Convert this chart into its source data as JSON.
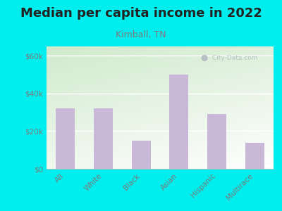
{
  "title": "Median per capita income in 2022",
  "subtitle": "Kimball, TN",
  "categories": [
    "All",
    "White",
    "Black",
    "Asian",
    "Hispanic",
    "Multirace"
  ],
  "values": [
    32000,
    32000,
    15000,
    50000,
    29000,
    14000
  ],
  "bar_color": "#C9B8D8",
  "background_outer": "#00EEEE",
  "title_fontsize": 13,
  "subtitle_fontsize": 9,
  "tick_label_fontsize": 7.5,
  "ytick_labels": [
    "$0",
    "$20k",
    "$40k",
    "$60k"
  ],
  "ytick_values": [
    0,
    20000,
    40000,
    60000
  ],
  "ylim": [
    0,
    65000
  ],
  "watermark": "City-Data.com",
  "title_color": "#222222",
  "subtitle_color": "#7a7a7a",
  "axis_label_color": "#7a7a7a"
}
